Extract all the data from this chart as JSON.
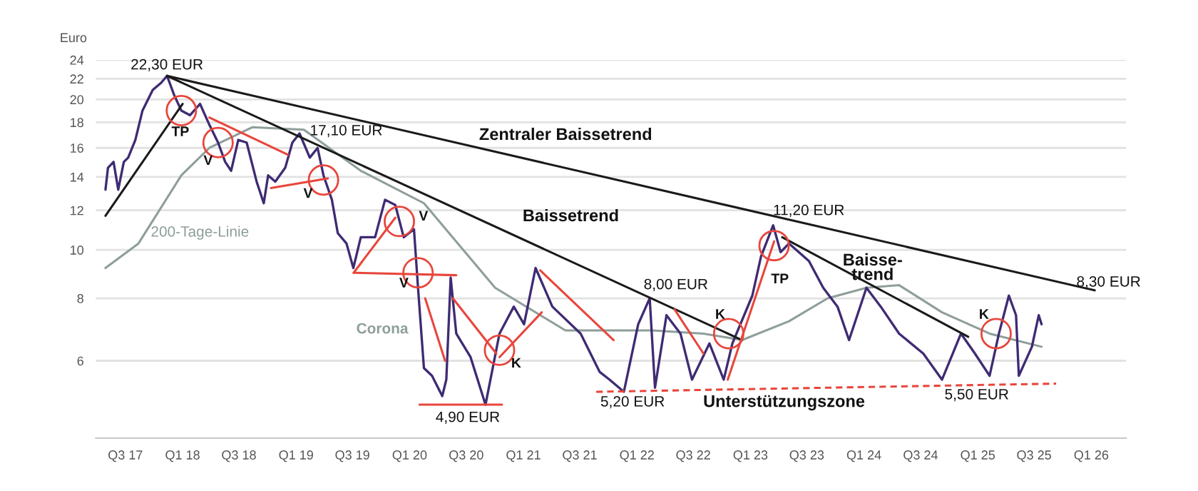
{
  "chart_data": {
    "type": "line",
    "ylabel": "Euro",
    "log": true,
    "grid": "y",
    "legend": false,
    "ylim": [
      4.2,
      24
    ],
    "yticks": [
      6,
      8,
      10,
      12,
      14,
      16,
      18,
      20,
      22,
      24
    ],
    "xlim": [
      "2017-03-28",
      "2026-04-23"
    ],
    "xticks": [
      {
        "value": "2017-07-01",
        "label": "Q3 17"
      },
      {
        "value": "2018-01-01",
        "label": "Q1 18"
      },
      {
        "value": "2018-07-01",
        "label": "Q3 18"
      },
      {
        "value": "2019-01-01",
        "label": "Q1 19"
      },
      {
        "value": "2019-07-01",
        "label": "Q3 19"
      },
      {
        "value": "2020-01-01",
        "label": "Q1 20"
      },
      {
        "value": "2020-07-01",
        "label": "Q3 20"
      },
      {
        "value": "2021-01-01",
        "label": "Q1 21"
      },
      {
        "value": "2021-07-01",
        "label": "Q3 21"
      },
      {
        "value": "2022-01-01",
        "label": "Q1 22"
      },
      {
        "value": "2022-07-01",
        "label": "Q3 22"
      },
      {
        "value": "2023-01-01",
        "label": "Q1 23"
      },
      {
        "value": "2023-07-01",
        "label": "Q3 23"
      },
      {
        "value": "2024-01-01",
        "label": "Q1 24"
      },
      {
        "value": "2024-07-01",
        "label": "Q3 24"
      },
      {
        "value": "2025-01-01",
        "label": "Q1 25"
      },
      {
        "value": "2025-07-01",
        "label": "Q3 25"
      },
      {
        "value": "2026-01-01",
        "label": "Q1 26"
      }
    ],
    "series": [
      {
        "color": "#8e9e9b",
        "x": [
          "2017-04-28",
          "2017-08-12",
          "2017-12-28",
          "2018-03-28",
          "2018-08-13",
          "2019-01-26",
          "2019-07-28",
          "2020-02-16",
          "2020-10-02",
          "2021-05-16",
          "2022-02-20",
          "2022-08-03",
          "2022-12-05",
          "2023-05-05",
          "2023-09-06",
          "2024-01-09",
          "2024-04-23",
          "2024-09-08",
          "2025-02-08",
          "2025-07-25"
        ],
        "values": [
          9.2,
          10.3,
          14.1,
          16.0,
          17.6,
          17.4,
          14.4,
          12.4,
          8.4,
          6.9,
          6.9,
          6.8,
          6.6,
          7.2,
          8.0,
          8.4,
          8.5,
          7.5,
          6.8,
          6.4
        ]
      },
      {
        "color": "#3f2b73",
        "x": [
          "2017-04-28",
          "2017-05-06",
          "2017-05-24",
          "2017-06-08",
          "2017-06-26",
          "2017-07-10",
          "2017-08-02",
          "2017-08-25",
          "2017-09-27",
          "2017-10-24",
          "2017-11-12",
          "2017-12-05",
          "2017-12-28",
          "2018-01-25",
          "2018-02-26",
          "2018-03-28",
          "2018-04-25",
          "2018-05-18",
          "2018-06-06",
          "2018-06-29",
          "2018-07-26",
          "2018-08-27",
          "2018-09-19",
          "2018-10-03",
          "2018-10-26",
          "2018-11-27",
          "2018-12-20",
          "2019-01-12",
          "2019-02-14",
          "2019-03-11",
          "2019-03-30",
          "2019-04-26",
          "2019-05-15",
          "2019-06-12",
          "2019-07-04",
          "2019-07-28",
          "2019-09-12",
          "2019-10-14",
          "2019-11-16",
          "2019-12-13",
          "2020-01-15",
          "2020-01-28",
          "2020-02-16",
          "2020-03-13",
          "2020-04-15",
          "2020-04-28",
          "2020-05-12",
          "2020-05-30",
          "2020-07-15",
          "2020-09-01",
          "2020-10-16",
          "2020-12-01",
          "2021-01-03",
          "2021-02-09",
          "2021-04-04",
          "2021-07-04",
          "2021-09-03",
          "2021-10-05",
          "2021-11-20",
          "2022-01-05",
          "2022-02-11",
          "2022-02-28",
          "2022-04-06",
          "2022-05-21",
          "2022-06-27",
          "2022-08-22",
          "2022-10-07",
          "2022-11-04",
          "2023-01-07",
          "2023-02-04",
          "2023-03-15",
          "2023-04-08",
          "2023-05-05",
          "2023-07-08",
          "2023-08-23",
          "2023-10-08",
          "2023-11-14",
          "2024-01-09",
          "2024-02-24",
          "2024-04-23",
          "2024-07-10",
          "2024-09-08",
          "2024-11-08",
          "2024-12-23",
          "2025-02-08",
          "2025-03-10",
          "2025-04-11",
          "2025-05-04",
          "2025-05-13",
          "2025-06-24",
          "2025-07-16",
          "2025-07-25"
        ],
        "values": [
          13.2,
          14.6,
          15.0,
          13.2,
          15.0,
          15.3,
          16.6,
          19.0,
          20.9,
          21.6,
          22.3,
          20.4,
          19.0,
          18.6,
          19.6,
          17.8,
          16.4,
          15.0,
          14.4,
          16.6,
          16.4,
          13.7,
          12.4,
          14.1,
          13.7,
          14.6,
          16.4,
          17.1,
          15.3,
          16.0,
          14.1,
          12.6,
          10.8,
          10.3,
          9.2,
          10.6,
          10.6,
          12.6,
          12.3,
          10.6,
          11.0,
          8.4,
          5.8,
          5.6,
          5.1,
          5.5,
          8.8,
          6.8,
          6.1,
          4.9,
          6.8,
          7.7,
          7.1,
          9.2,
          7.7,
          6.8,
          5.7,
          5.5,
          5.2,
          7.1,
          8.0,
          5.3,
          7.4,
          6.8,
          5.5,
          6.5,
          5.5,
          6.5,
          8.1,
          9.7,
          11.2,
          9.9,
          10.3,
          9.5,
          8.4,
          7.7,
          6.6,
          8.4,
          7.7,
          6.8,
          6.2,
          5.5,
          6.8,
          6.2,
          5.6,
          6.8,
          8.1,
          7.4,
          5.6,
          6.4,
          7.4,
          7.1
        ]
      },
      {
        "type": "line",
        "color": "#1a1a1a",
        "x": [
          "2017-11-12",
          "2026-01-12"
        ],
        "values": [
          22.3,
          8.3
        ]
      },
      {
        "type": "line",
        "color": "#1a1a1a",
        "x": [
          "2017-11-12",
          "2022-12-05"
        ],
        "values": [
          22.3,
          6.6
        ]
      },
      {
        "type": "line",
        "color": "#1a1a1a",
        "x": [
          "2023-04-13",
          "2024-12-01"
        ],
        "values": [
          10.6,
          6.7
        ]
      },
      {
        "type": "line",
        "color": "#1a1a1a",
        "x": [
          "2017-04-28",
          "2018-01-01"
        ],
        "values": [
          11.7,
          19.6
        ]
      },
      {
        "type": "line",
        "color": "#e8463c",
        "x": [
          "2018-03-28",
          "2018-12-06"
        ],
        "values": [
          18.4,
          15.5
        ]
      },
      {
        "type": "line",
        "color": "#e8463c",
        "x": [
          "2018-10-12",
          "2019-04-13"
        ],
        "values": [
          13.3,
          13.9
        ]
      },
      {
        "type": "line",
        "color": "#e8463c",
        "x": [
          "2019-07-05",
          "2019-11-16"
        ],
        "values": [
          9.0,
          11.6
        ]
      },
      {
        "type": "line",
        "color": "#e8463c",
        "x": [
          "2019-07-05",
          "2020-05-30"
        ],
        "values": [
          9.0,
          8.9
        ]
      },
      {
        "type": "line",
        "color": "#e8463c",
        "x": [
          "2020-02-20",
          "2020-04-24"
        ],
        "values": [
          8.0,
          6.0
        ]
      },
      {
        "type": "line",
        "color": "#e8463c",
        "x": [
          "2020-05-19",
          "2020-10-06"
        ],
        "values": [
          8.0,
          6.2
        ]
      },
      {
        "type": "line",
        "color": "#e8463c",
        "x": [
          "2020-10-16",
          "2021-03-01"
        ],
        "values": [
          6.1,
          7.5
        ]
      },
      {
        "type": "line",
        "color": "#e8463c",
        "x": [
          "2021-02-24",
          "2021-10-18"
        ],
        "values": [
          9.1,
          6.6
        ]
      },
      {
        "type": "line",
        "color": "#e8463c",
        "x": [
          "2022-05-02",
          "2022-08-03"
        ],
        "values": [
          7.6,
          6.2
        ]
      },
      {
        "type": "line",
        "color": "#e8463c",
        "x": [
          "2022-10-20",
          "2023-03-18"
        ],
        "values": [
          5.5,
          10.4
        ]
      },
      {
        "type": "line",
        "color": "#e8463c",
        "x": [
          "2020-02-02",
          "2020-10-24"
        ],
        "values": [
          4.9,
          4.9
        ]
      },
      {
        "type": "line",
        "color": "#e8463c",
        "line_style": "dashed",
        "x": [
          "2021-08-23",
          "2025-09-10"
        ],
        "values": [
          5.2,
          5.4
        ]
      },
      {
        "type": "scatter",
        "color": "#e8463c",
        "marker": "circle",
        "x": [
          "2017-12-28",
          "2018-04-25",
          "2019-03-30",
          "2019-11-29",
          "2020-01-28",
          "2020-10-16",
          "2022-10-23",
          "2023-03-18",
          "2025-03-01"
        ],
        "values": [
          19.0,
          16.4,
          13.8,
          11.4,
          9.0,
          6.3,
          6.8,
          10.2,
          6.8
        ]
      }
    ],
    "annotations": [
      "22,30 EUR",
      "17,10 EUR",
      "4,90 EUR",
      "5,20 EUR",
      "8,00 EUR",
      "11,20 EUR",
      "5,50 EUR",
      "8,30 EUR",
      "TP",
      "V",
      "V",
      "V",
      "V",
      "K",
      "K",
      "TP",
      "K",
      "Zentraler Baissetrend",
      "Baissetrend",
      "Baisse-\ntrend",
      "Unterstützungszone",
      "200-Tage-Linie",
      "Corona"
    ]
  }
}
